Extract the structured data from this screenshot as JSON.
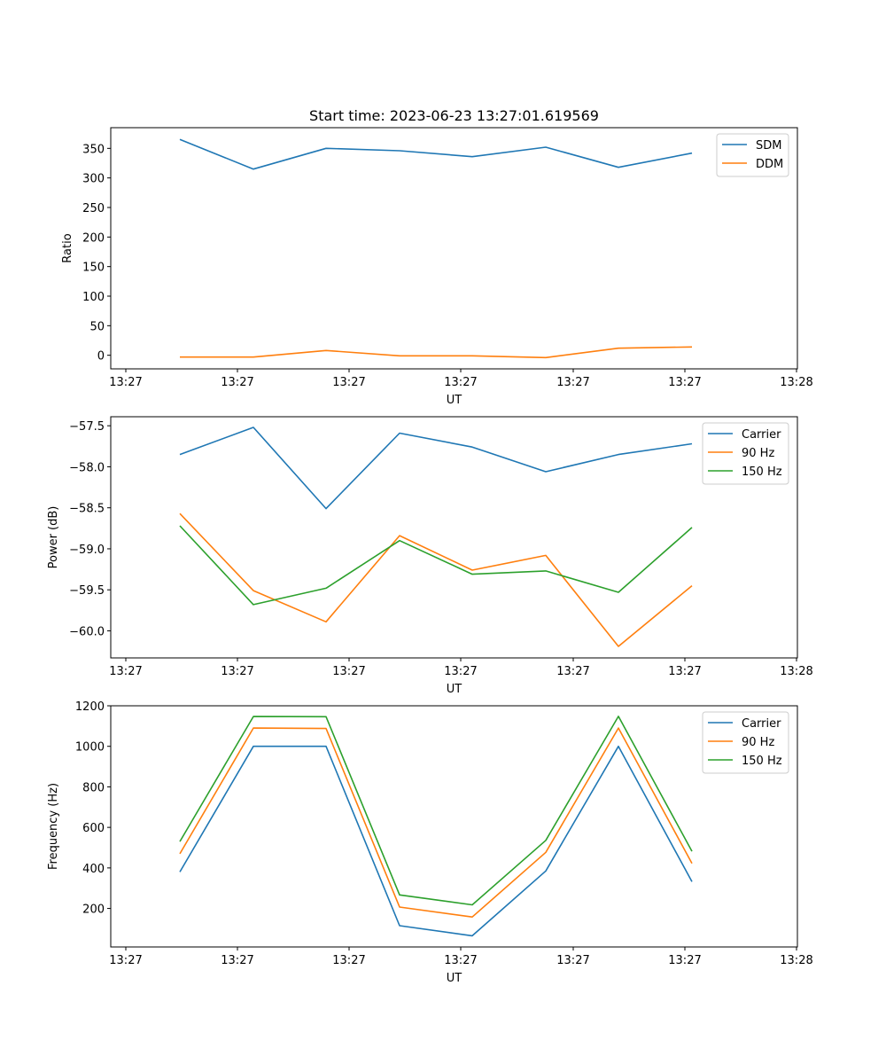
{
  "chart_data": [
    {
      "type": "line",
      "title": "Start time: 2023-06-23 13:27:01.619569",
      "xlabel": "UT",
      "ylabel": "Ratio",
      "x_tick_labels": [
        "13:27",
        "13:27",
        "13:27",
        "13:27",
        "13:27",
        "13:27",
        "13:28"
      ],
      "y_ticks": [
        0,
        50,
        100,
        150,
        200,
        250,
        300,
        350
      ],
      "y_tick_labels": [
        "0",
        "50",
        "100",
        "150",
        "200",
        "250",
        "300",
        "350"
      ],
      "ylim": [
        -23,
        385
      ],
      "legend_position": "top-right",
      "series": [
        {
          "name": "SDM",
          "color": "#1f77b4",
          "values": [
            365,
            315,
            350,
            346,
            336,
            352,
            318,
            342
          ]
        },
        {
          "name": "DDM",
          "color": "#ff7f0e",
          "values": [
            -3,
            -3,
            8,
            -1,
            -1,
            -4,
            12,
            14
          ]
        }
      ]
    },
    {
      "type": "line",
      "title": "",
      "xlabel": "UT",
      "ylabel": "Power (dB)",
      "x_tick_labels": [
        "13:27",
        "13:27",
        "13:27",
        "13:27",
        "13:27",
        "13:27",
        "13:28"
      ],
      "y_ticks": [
        -57.5,
        -58.0,
        -58.5,
        -59.0,
        -59.5,
        -60.0
      ],
      "y_tick_labels": [
        "−57.5",
        "−58.0",
        "−58.5",
        "−59.0",
        "−59.5",
        "−60.0"
      ],
      "ylim": [
        -60.33,
        -57.39
      ],
      "legend_position": "top-right",
      "series": [
        {
          "name": "Carrier",
          "color": "#1f77b4",
          "values": [
            -57.85,
            -57.52,
            -58.51,
            -57.59,
            -57.76,
            -58.06,
            -57.85,
            -57.72
          ]
        },
        {
          "name": "90 Hz",
          "color": "#ff7f0e",
          "values": [
            -58.57,
            -59.51,
            -59.89,
            -58.84,
            -59.26,
            -59.08,
            -60.19,
            -59.45
          ]
        },
        {
          "name": "150 Hz",
          "color": "#2ca02c",
          "values": [
            -58.72,
            -59.68,
            -59.48,
            -58.9,
            -59.31,
            -59.27,
            -59.53,
            -58.74
          ]
        }
      ]
    },
    {
      "type": "line",
      "title": "",
      "xlabel": "UT",
      "ylabel": "Frequency (Hz)",
      "x_tick_labels": [
        "13:27",
        "13:27",
        "13:27",
        "13:27",
        "13:27",
        "13:27",
        "13:28"
      ],
      "y_ticks": [
        200,
        400,
        600,
        800,
        1000,
        1200
      ],
      "y_tick_labels": [
        "200",
        "400",
        "600",
        "800",
        "1000",
        "1200"
      ],
      "ylim": [
        10,
        1200
      ],
      "legend_position": "top-right",
      "series": [
        {
          "name": "Carrier",
          "color": "#1f77b4",
          "values": [
            380,
            1000,
            1000,
            115,
            65,
            385,
            1000,
            332
          ]
        },
        {
          "name": "90 Hz",
          "color": "#ff7f0e",
          "values": [
            470,
            1090,
            1088,
            207,
            158,
            477,
            1090,
            422
          ]
        },
        {
          "name": "150 Hz",
          "color": "#2ca02c",
          "values": [
            530,
            1147,
            1146,
            267,
            218,
            536,
            1148,
            482
          ]
        }
      ]
    }
  ]
}
